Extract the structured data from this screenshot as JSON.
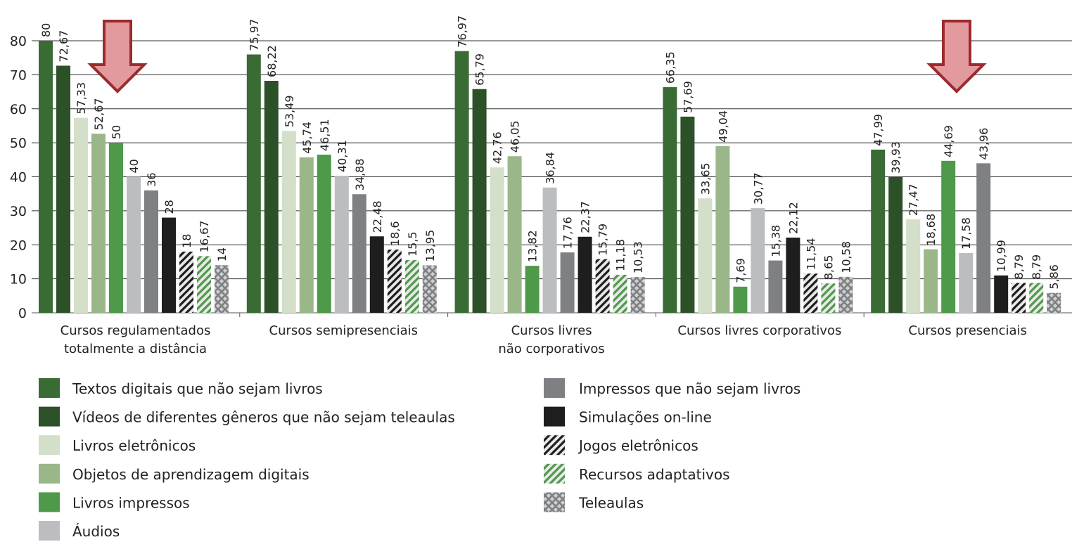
{
  "chart_data": {
    "type": "bar",
    "categories": [
      "Cursos regulamentados\ntotalmente a distância",
      "Cursos semipresenciais",
      "Cursos livres\nnão corporativos",
      "Cursos livres corporativos",
      "Cursos presenciais"
    ],
    "ylim": [
      0,
      80
    ],
    "yticks": [
      0,
      10,
      20,
      30,
      40,
      50,
      60,
      70,
      80
    ],
    "grid": true,
    "series": [
      {
        "name": "Textos digitais que não sejam livros",
        "color": "#3a6b35",
        "values": [
          80,
          75.97,
          76.97,
          66.35,
          47.99
        ],
        "value_labels": [
          "80",
          "75,97",
          "76,97",
          "66,35",
          "47,99"
        ]
      },
      {
        "name": "Vídeos de diferentes gêneros que não sejam teleaulas",
        "color": "#2c5128",
        "values": [
          72.67,
          68.22,
          65.79,
          57.69,
          39.93
        ],
        "value_labels": [
          "72,67",
          "68,22",
          "65,79",
          "57,69",
          "39,93"
        ]
      },
      {
        "name": "Livros eletrônicos",
        "color": "#d3dfc8",
        "values": [
          57.33,
          53.49,
          42.76,
          33.65,
          27.47
        ],
        "value_labels": [
          "57,33",
          "53,49",
          "42,76",
          "33,65",
          "27,47"
        ]
      },
      {
        "name": "Objetos de aprendizagem digitais",
        "color": "#9ab78a",
        "values": [
          52.67,
          45.74,
          46.05,
          49.04,
          18.68
        ],
        "value_labels": [
          "52,67",
          "45,74",
          "46,05",
          "49,04",
          "18,68"
        ]
      },
      {
        "name": "Livros impressos",
        "color": "#4e9a4a",
        "values": [
          50,
          46.51,
          13.82,
          7.69,
          44.69
        ],
        "value_labels": [
          "50",
          "46,51",
          "13,82",
          "7,69",
          "44,69"
        ]
      },
      {
        "name": "Áudios",
        "color": "#bcbdc1",
        "values": [
          40,
          40.31,
          36.84,
          30.77,
          17.58
        ],
        "value_labels": [
          "40",
          "40,31",
          "36,84",
          "30,77",
          "17,58"
        ]
      },
      {
        "name": "Impressos que não sejam livros",
        "color": "#7f8083",
        "values": [
          36,
          34.88,
          17.76,
          15.38,
          43.96
        ],
        "value_labels": [
          "36",
          "34,88",
          "17,76",
          "15,38",
          "43,96"
        ]
      },
      {
        "name": "Simulações on-line",
        "color": "#1e1e1e",
        "values": [
          28,
          22.48,
          22.37,
          22.12,
          10.99
        ],
        "value_labels": [
          "28",
          "22,48",
          "22,37",
          "22,12",
          "10,99"
        ]
      },
      {
        "name": "Jogos eletrônicos",
        "color": "#1e1e1e",
        "hatch": "diagonal",
        "values": [
          18,
          18.6,
          15.79,
          11.54,
          8.79
        ],
        "value_labels": [
          "18",
          "18,6",
          "15,79",
          "11,54",
          "8,79"
        ]
      },
      {
        "name": "Recursos adaptativos",
        "color": "#4e9a4a",
        "hatch": "diagonal",
        "values": [
          16.67,
          15.5,
          11.18,
          8.65,
          8.79
        ],
        "value_labels": [
          "16,67",
          "15,5",
          "11,18",
          "8,65",
          "8,79"
        ]
      },
      {
        "name": "Teleaulas",
        "color": "#7f8083",
        "hatch": "cross",
        "values": [
          14,
          13.95,
          10.53,
          10.58,
          5.86
        ],
        "value_labels": [
          "14",
          "13,95",
          "10,53",
          "10,58",
          "5,86"
        ]
      }
    ]
  }
}
